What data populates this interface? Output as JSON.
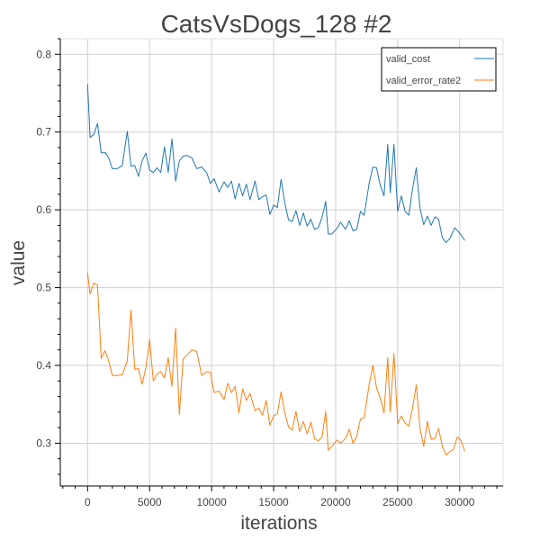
{
  "chart_data": {
    "type": "line",
    "title": "CatsVsDogs_128 #2",
    "xlabel": "iterations",
    "ylabel": "value",
    "xlim": [
      -2200,
      33500
    ],
    "ylim": [
      0.245,
      0.82
    ],
    "x_ticks": [
      0,
      5000,
      10000,
      15000,
      20000,
      25000,
      30000
    ],
    "y_ticks": [
      0.3,
      0.4,
      0.5,
      0.6,
      0.7,
      0.8
    ],
    "x_minor_step": 1000,
    "y_minor_step": 0.02,
    "grid": true,
    "legend_position": "top-right",
    "series": [
      {
        "name": "valid_cost",
        "color": "#1f77b4",
        "points": [
          [
            0,
            0.761
          ],
          [
            200,
            0.693
          ],
          [
            500,
            0.697
          ],
          [
            800,
            0.711
          ],
          [
            1100,
            0.673
          ],
          [
            1400,
            0.674
          ],
          [
            1700,
            0.667
          ],
          [
            2000,
            0.653
          ],
          [
            2400,
            0.653
          ],
          [
            2800,
            0.657
          ],
          [
            3200,
            0.701
          ],
          [
            3500,
            0.656
          ],
          [
            3800,
            0.657
          ],
          [
            4100,
            0.643
          ],
          [
            4400,
            0.663
          ],
          [
            4700,
            0.673
          ],
          [
            5000,
            0.651
          ],
          [
            5300,
            0.648
          ],
          [
            5600,
            0.654
          ],
          [
            5900,
            0.648
          ],
          [
            6200,
            0.681
          ],
          [
            6500,
            0.648
          ],
          [
            6800,
            0.691
          ],
          [
            7100,
            0.637
          ],
          [
            7400,
            0.663
          ],
          [
            7700,
            0.669
          ],
          [
            8000,
            0.67
          ],
          [
            8400,
            0.667
          ],
          [
            8800,
            0.653
          ],
          [
            9200,
            0.655
          ],
          [
            9600,
            0.648
          ],
          [
            9900,
            0.634
          ],
          [
            10200,
            0.64
          ],
          [
            10600,
            0.623
          ],
          [
            11000,
            0.636
          ],
          [
            11300,
            0.629
          ],
          [
            11600,
            0.637
          ],
          [
            11900,
            0.614
          ],
          [
            12200,
            0.634
          ],
          [
            12500,
            0.618
          ],
          [
            12800,
            0.633
          ],
          [
            13100,
            0.613
          ],
          [
            13500,
            0.637
          ],
          [
            13800,
            0.613
          ],
          [
            14100,
            0.617
          ],
          [
            14400,
            0.619
          ],
          [
            14700,
            0.594
          ],
          [
            15000,
            0.606
          ],
          [
            15300,
            0.603
          ],
          [
            15600,
            0.639
          ],
          [
            15900,
            0.609
          ],
          [
            16200,
            0.587
          ],
          [
            16500,
            0.585
          ],
          [
            16800,
            0.599
          ],
          [
            17100,
            0.58
          ],
          [
            17400,
            0.596
          ],
          [
            17700,
            0.579
          ],
          [
            18000,
            0.588
          ],
          [
            18300,
            0.575
          ],
          [
            18600,
            0.577
          ],
          [
            18900,
            0.59
          ],
          [
            19200,
            0.611
          ],
          [
            19400,
            0.569
          ],
          [
            19700,
            0.569
          ],
          [
            20100,
            0.576
          ],
          [
            20400,
            0.584
          ],
          [
            20800,
            0.575
          ],
          [
            21100,
            0.586
          ],
          [
            21400,
            0.573
          ],
          [
            21700,
            0.575
          ],
          [
            22000,
            0.598
          ],
          [
            22300,
            0.593
          ],
          [
            22700,
            0.634
          ],
          [
            23000,
            0.655
          ],
          [
            23300,
            0.654
          ],
          [
            23600,
            0.631
          ],
          [
            23900,
            0.618
          ],
          [
            24200,
            0.684
          ],
          [
            24400,
            0.622
          ],
          [
            24700,
            0.684
          ],
          [
            25000,
            0.598
          ],
          [
            25300,
            0.618
          ],
          [
            25600,
            0.598
          ],
          [
            25900,
            0.593
          ],
          [
            26200,
            0.627
          ],
          [
            26500,
            0.654
          ],
          [
            26800,
            0.602
          ],
          [
            27100,
            0.581
          ],
          [
            27400,
            0.592
          ],
          [
            27700,
            0.58
          ],
          [
            28000,
            0.591
          ],
          [
            28300,
            0.588
          ],
          [
            28600,
            0.564
          ],
          [
            28900,
            0.558
          ],
          [
            29200,
            0.563
          ],
          [
            29600,
            0.577
          ],
          [
            30000,
            0.57
          ],
          [
            30400,
            0.561
          ]
        ]
      },
      {
        "name": "valid_error_rate2",
        "color": "#ff7f0e",
        "points": [
          [
            0,
            0.519
          ],
          [
            200,
            0.492
          ],
          [
            500,
            0.506
          ],
          [
            800,
            0.503
          ],
          [
            1100,
            0.409
          ],
          [
            1400,
            0.419
          ],
          [
            1700,
            0.406
          ],
          [
            2000,
            0.387
          ],
          [
            2400,
            0.387
          ],
          [
            2800,
            0.388
          ],
          [
            3200,
            0.406
          ],
          [
            3500,
            0.471
          ],
          [
            3800,
            0.395
          ],
          [
            4100,
            0.396
          ],
          [
            4400,
            0.376
          ],
          [
            4700,
            0.397
          ],
          [
            5000,
            0.433
          ],
          [
            5300,
            0.38
          ],
          [
            5600,
            0.389
          ],
          [
            5900,
            0.392
          ],
          [
            6200,
            0.384
          ],
          [
            6500,
            0.41
          ],
          [
            6800,
            0.373
          ],
          [
            7100,
            0.448
          ],
          [
            7400,
            0.337
          ],
          [
            7700,
            0.408
          ],
          [
            8000,
            0.413
          ],
          [
            8400,
            0.42
          ],
          [
            8800,
            0.418
          ],
          [
            9200,
            0.387
          ],
          [
            9600,
            0.392
          ],
          [
            9900,
            0.391
          ],
          [
            10200,
            0.365
          ],
          [
            10600,
            0.367
          ],
          [
            11000,
            0.356
          ],
          [
            11300,
            0.377
          ],
          [
            11600,
            0.365
          ],
          [
            11900,
            0.373
          ],
          [
            12200,
            0.339
          ],
          [
            12500,
            0.37
          ],
          [
            12800,
            0.355
          ],
          [
            13100,
            0.364
          ],
          [
            13500,
            0.342
          ],
          [
            13800,
            0.345
          ],
          [
            14100,
            0.336
          ],
          [
            14400,
            0.355
          ],
          [
            14700,
            0.323
          ],
          [
            15000,
            0.335
          ],
          [
            15300,
            0.338
          ],
          [
            15600,
            0.366
          ],
          [
            15900,
            0.339
          ],
          [
            16200,
            0.321
          ],
          [
            16500,
            0.317
          ],
          [
            16800,
            0.341
          ],
          [
            17100,
            0.315
          ],
          [
            17400,
            0.328
          ],
          [
            17700,
            0.312
          ],
          [
            18000,
            0.327
          ],
          [
            18300,
            0.306
          ],
          [
            18600,
            0.303
          ],
          [
            18900,
            0.308
          ],
          [
            19200,
            0.341
          ],
          [
            19400,
            0.291
          ],
          [
            19700,
            0.296
          ],
          [
            20100,
            0.304
          ],
          [
            20400,
            0.3
          ],
          [
            20800,
            0.306
          ],
          [
            21100,
            0.318
          ],
          [
            21400,
            0.3
          ],
          [
            21700,
            0.309
          ],
          [
            22000,
            0.331
          ],
          [
            22300,
            0.333
          ],
          [
            22700,
            0.375
          ],
          [
            23000,
            0.4
          ],
          [
            23300,
            0.371
          ],
          [
            23600,
            0.358
          ],
          [
            23900,
            0.339
          ],
          [
            24200,
            0.41
          ],
          [
            24400,
            0.34
          ],
          [
            24700,
            0.415
          ],
          [
            25000,
            0.325
          ],
          [
            25300,
            0.335
          ],
          [
            25600,
            0.326
          ],
          [
            25900,
            0.322
          ],
          [
            26200,
            0.345
          ],
          [
            26500,
            0.375
          ],
          [
            26800,
            0.319
          ],
          [
            27100,
            0.296
          ],
          [
            27400,
            0.328
          ],
          [
            27700,
            0.305
          ],
          [
            28000,
            0.306
          ],
          [
            28300,
            0.319
          ],
          [
            28600,
            0.296
          ],
          [
            28900,
            0.285
          ],
          [
            29200,
            0.289
          ],
          [
            29500,
            0.292
          ],
          [
            29800,
            0.308
          ],
          [
            30100,
            0.304
          ],
          [
            30400,
            0.29
          ]
        ]
      }
    ]
  }
}
